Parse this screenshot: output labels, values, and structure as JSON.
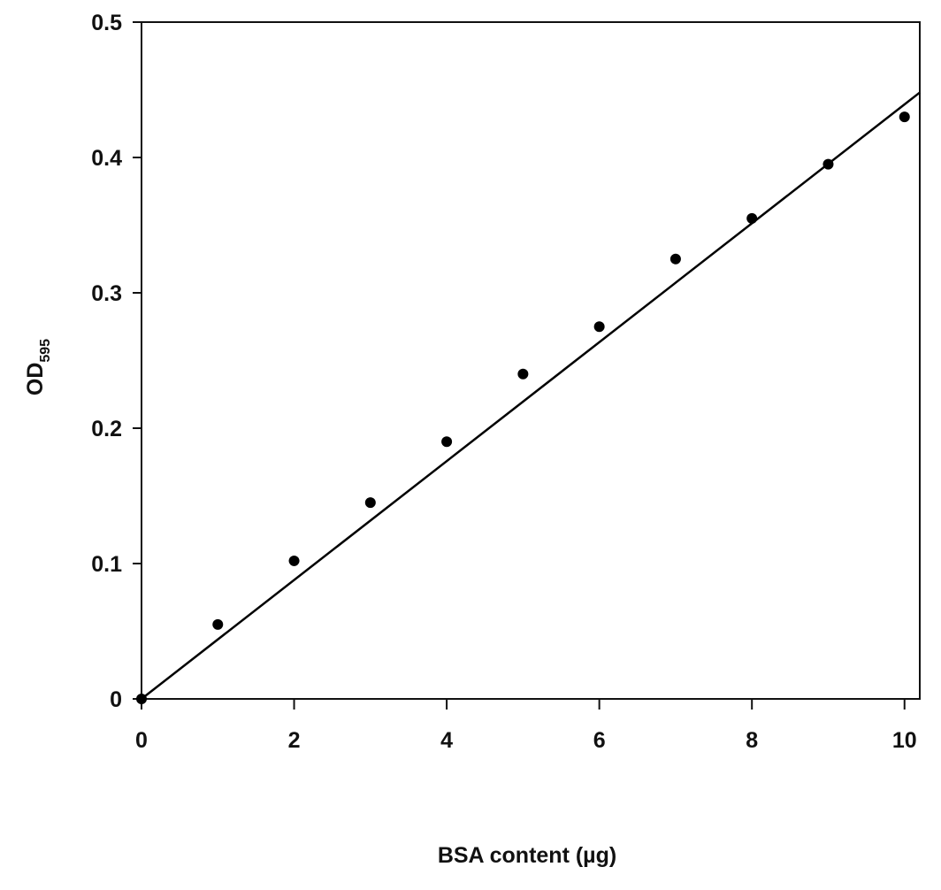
{
  "chart_data": {
    "type": "scatter",
    "x_label": "BSA content (µg)",
    "y_label": "OD",
    "y_label_subscript": "595",
    "series": [
      {
        "color": "#000000",
        "x": [
          0,
          1,
          2,
          3,
          4,
          5,
          6,
          7,
          8,
          9,
          10
        ],
        "values": [
          0,
          0.055,
          0.102,
          0.145,
          0.19,
          0.24,
          0.275,
          0.325,
          0.355,
          0.395,
          0.43
        ]
      }
    ],
    "fit_line": {
      "color": "#000000",
      "x": [
        0,
        10.2
      ],
      "values": [
        0,
        0.448
      ]
    },
    "xlim": [
      0,
      10.2
    ],
    "ylim": [
      0,
      0.5
    ],
    "xticks": [
      0,
      2,
      4,
      6,
      8,
      10
    ],
    "yticks": [
      0,
      0.1,
      0.2,
      0.3,
      0.4,
      0.5
    ]
  }
}
